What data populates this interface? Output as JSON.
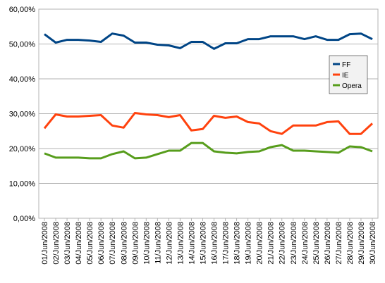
{
  "chart_data": {
    "type": "line",
    "title": "",
    "xlabel": "",
    "ylabel": "",
    "ylim": [
      0,
      60
    ],
    "y_ticks": [
      "0,00%",
      "10,00%",
      "20,00%",
      "30,00%",
      "40,00%",
      "50,00%",
      "60,00%"
    ],
    "grid": true,
    "legend_position": "right",
    "categories": [
      "01/Jun/2008",
      "02/Jun/2008",
      "03/Jun/2008",
      "04/Jun/2008",
      "05/Jun/2008",
      "06/Jun/2008",
      "07/Jun/2008",
      "08/Jun/2008",
      "09/Jun/2008",
      "10/Jun/2008",
      "11/Jun/2008",
      "12/Jun/2008",
      "13/Jun/2008",
      "14/Jun/2008",
      "15/Jun/2008",
      "16/Jun/2008",
      "17/Jun/2008",
      "18/Jun/2008",
      "19/Jun/2008",
      "20/Jun/2008",
      "21/Jun/2008",
      "22/Jun/2008",
      "23/Jun/2008",
      "24/Jun/2008",
      "25/Jun/2008",
      "26/Jun/2008",
      "27/Jun/2008",
      "28/Jun/2008",
      "29/Jun/2008",
      "30/Jun/2008"
    ],
    "series": [
      {
        "name": "FF",
        "color": "#004586",
        "values": [
          52.8,
          50.4,
          51.2,
          51.2,
          51.0,
          50.6,
          53.0,
          52.4,
          50.4,
          50.4,
          49.8,
          49.6,
          48.8,
          50.6,
          50.6,
          48.6,
          50.2,
          50.2,
          51.4,
          51.4,
          52.2,
          52.2,
          52.2,
          51.4,
          52.2,
          51.2,
          51.2,
          52.8,
          53.0,
          51.4
        ]
      },
      {
        "name": "IE",
        "color": "#ff420e",
        "values": [
          25.8,
          29.8,
          29.2,
          29.2,
          29.4,
          29.6,
          26.6,
          26.0,
          30.2,
          29.8,
          29.6,
          29.0,
          29.6,
          25.2,
          25.6,
          29.4,
          28.8,
          29.2,
          27.6,
          27.2,
          25.0,
          24.2,
          26.6,
          26.6,
          26.6,
          27.6,
          27.8,
          24.2,
          24.2,
          27.2
        ]
      },
      {
        "name": "Opera",
        "color": "#579d1c",
        "values": [
          18.6,
          17.4,
          17.4,
          17.4,
          17.2,
          17.2,
          18.4,
          19.2,
          17.2,
          17.4,
          18.4,
          19.4,
          19.4,
          21.6,
          21.6,
          19.2,
          18.8,
          18.6,
          19.0,
          19.2,
          20.4,
          21.0,
          19.4,
          19.4,
          19.2,
          19.0,
          18.8,
          20.6,
          20.4,
          19.2
        ]
      }
    ]
  }
}
